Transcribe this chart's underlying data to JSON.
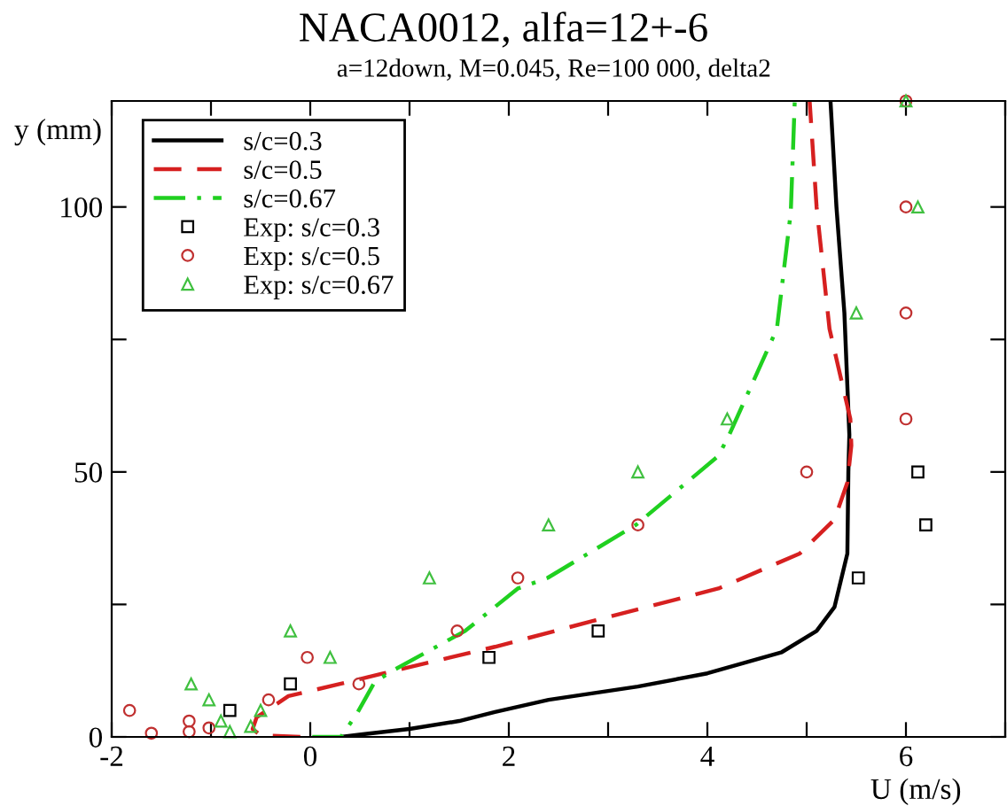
{
  "chart_data": {
    "type": "line",
    "title": "NACA0012, alfa=12+-6",
    "subtitle": "a=12down, M=0.045, Re=100 000, delta2",
    "xlabel": "U (m/s)",
    "ylabel": "y (mm)",
    "xlim": [
      -2,
      7
    ],
    "ylim": [
      0,
      120
    ],
    "xticks": [
      -2,
      {
        "value": -1,
        "label": null
      },
      0,
      {
        "value": 1,
        "label": null
      },
      2,
      {
        "value": 3,
        "label": null
      },
      4,
      {
        "value": 5,
        "label": null
      },
      6,
      {
        "value": 7,
        "label": null
      }
    ],
    "yticks": [
      0,
      {
        "value": 25,
        "label": null
      },
      50,
      {
        "value": 75,
        "label": null
      },
      100
    ],
    "grid": false,
    "legend": "top left",
    "series": [
      {
        "name": "s/c=0.3",
        "color": "#000000",
        "line_style": "solid",
        "marker": "none",
        "x": [
          0.31,
          0.53,
          1.0,
          1.5,
          1.86,
          2.4,
          3.3,
          4.0,
          4.75,
          5.1,
          5.28,
          5.41,
          5.42,
          5.43,
          5.38,
          5.3,
          5.24
        ],
        "values": [
          0,
          0.5,
          1.5,
          3,
          4.7,
          7,
          9.5,
          12,
          16,
          20,
          24.5,
          34.6,
          50,
          57,
          80,
          100,
          120
        ]
      },
      {
        "name": "s/c=0.5",
        "color": "#d62020",
        "line_style": "dashed",
        "marker": "none",
        "x": [
          -0.1,
          -0.5,
          -0.58,
          -0.54,
          -0.22,
          0.3,
          0.74,
          1.86,
          2.87,
          4.11,
          4.93,
          5.28,
          5.41,
          5.45,
          5.44,
          5.23,
          5.1,
          5.03
        ],
        "values": [
          0,
          0.3,
          1.5,
          3.7,
          7.7,
          10,
          12,
          17,
          22,
          28,
          34.6,
          41,
          48,
          55,
          60,
          77,
          100,
          120
        ]
      },
      {
        "name": "s/c=0.67",
        "color": "#20d020",
        "line_style": "dashdot",
        "marker": "none",
        "x": [
          0.02,
          0.31,
          0.47,
          0.65,
          0.85,
          1.56,
          2.09,
          2.39,
          3.28,
          4.11,
          4.22,
          4.34,
          4.7,
          4.84,
          4.88
        ],
        "values": [
          0,
          0,
          4.4,
          10.4,
          12.7,
          20,
          28,
          30,
          40,
          53,
          57,
          62,
          77,
          99,
          120
        ]
      },
      {
        "name": "Exp: s/c=0.3",
        "type": "scatter",
        "color": "#000000",
        "marker": "square",
        "x": [
          -0.81,
          -0.2,
          1.8,
          2.9,
          5.52,
          6.2,
          6.12
        ],
        "values": [
          5,
          10,
          15,
          20,
          30,
          40,
          50
        ]
      },
      {
        "name": "Exp: s/c=0.5",
        "type": "scatter",
        "color": "#c03030",
        "marker": "circle",
        "x": [
          -1.82,
          -1.6,
          -1.22,
          -1.22,
          -1.02,
          -0.42,
          -0.03,
          0.49,
          1.48,
          2.09,
          3.3,
          5.0,
          6.0,
          6.0,
          6.0,
          6.0
        ],
        "values": [
          5,
          0.7,
          3,
          1,
          1.7,
          7,
          15,
          10,
          20,
          30,
          40,
          50,
          60,
          80,
          100,
          120
        ]
      },
      {
        "name": "Exp: s/c=0.67",
        "type": "scatter",
        "color": "#40c040",
        "marker": "triangle",
        "x": [
          -1.2,
          -1.02,
          -0.9,
          -0.81,
          -0.6,
          -0.5,
          -0.2,
          0.2,
          1.2,
          2.4,
          3.3,
          4.2,
          5.5,
          6.12,
          6.0
        ],
        "values": [
          10,
          7,
          3,
          1,
          2,
          5,
          20,
          15,
          30,
          40,
          50,
          60,
          80,
          100,
          120
        ]
      }
    ]
  }
}
